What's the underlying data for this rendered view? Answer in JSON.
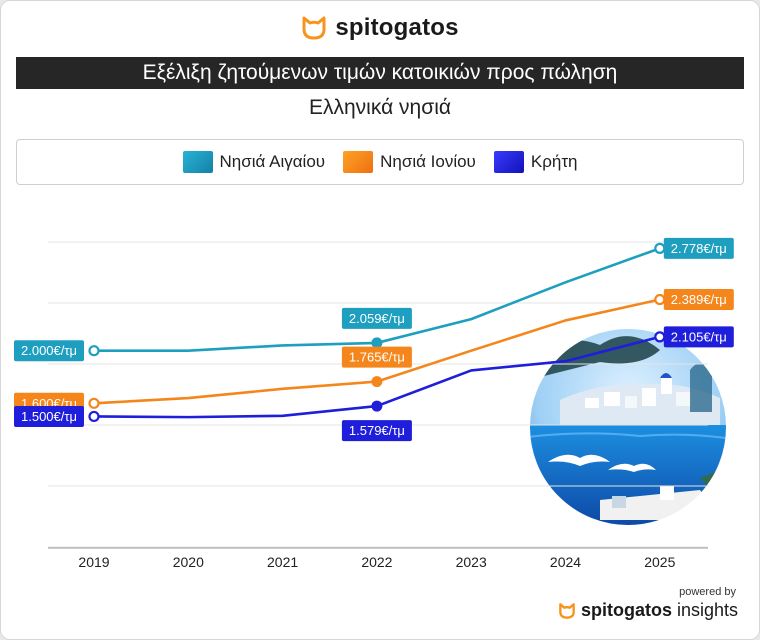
{
  "brand": {
    "name": "spitogatos",
    "icon": "cat-head-icon",
    "accent": "#f7941d"
  },
  "header": {
    "title": "Εξέλιξη ζητούμενων τιμών κατοικιών προς πώληση",
    "subtitle": "Ελληνικά νησιά"
  },
  "footer": {
    "powered_by": "powered by",
    "brand_main": "spitogatos",
    "brand_suffix": "insights"
  },
  "chart_data": {
    "type": "line",
    "x": [
      "2019",
      "2020",
      "2021",
      "2022",
      "2023",
      "2024",
      "2025"
    ],
    "ylim": [
      500,
      3100
    ],
    "grid": true,
    "legend": "top",
    "series": [
      {
        "name": "Νησιά Αιγαίου",
        "color": "#1e9fc0",
        "gradient": [
          "#27b3d3",
          "#1580a8"
        ],
        "values": [
          2000,
          2000,
          2040,
          2059,
          2240,
          2520,
          2778
        ],
        "labels": [
          {
            "index": 0,
            "text": "2.000€/τμ",
            "align": "end"
          },
          {
            "index": 3,
            "text": "2.059€/τμ",
            "align": "above"
          },
          {
            "index": 6,
            "text": "2.778€/τμ",
            "align": "start"
          }
        ]
      },
      {
        "name": "Νησιά Ιονίου",
        "color": "#f4861c",
        "gradient": [
          "#ffa225",
          "#ee6f12"
        ],
        "values": [
          1600,
          1640,
          1710,
          1765,
          2000,
          2230,
          2389
        ],
        "labels": [
          {
            "index": 0,
            "text": "1.600€/τμ",
            "align": "end"
          },
          {
            "index": 3,
            "text": "1.765€/τμ",
            "align": "above"
          },
          {
            "index": 6,
            "text": "2.389€/τμ",
            "align": "start"
          }
        ]
      },
      {
        "name": "Κρήτη",
        "color": "#1e1edb",
        "gradient": [
          "#3a3aff",
          "#1212b8"
        ],
        "values": [
          1500,
          1495,
          1505,
          1579,
          1850,
          1920,
          2105
        ],
        "labels": [
          {
            "index": 0,
            "text": "1.500€/τμ",
            "align": "end"
          },
          {
            "index": 3,
            "text": "1.579€/τμ",
            "align": "below"
          },
          {
            "index": 6,
            "text": "2.105€/τμ",
            "align": "start"
          }
        ]
      }
    ],
    "hollow_markers_at": [
      0,
      6
    ],
    "filled_markers_at": [
      3
    ]
  }
}
